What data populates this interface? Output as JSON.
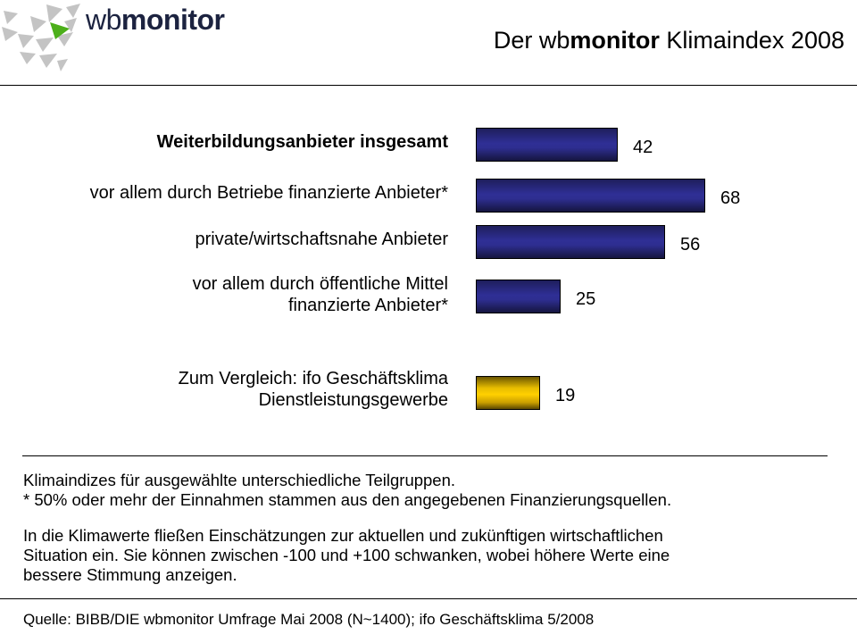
{
  "header": {
    "logo": {
      "text_light": "wb",
      "text_bold": "monitor"
    },
    "title": {
      "prefix": "Der wb",
      "bold": "monitor",
      "suffix": " Klimaindex 2008"
    }
  },
  "chart_data": {
    "type": "bar",
    "orientation": "horizontal",
    "title": "Der wbmonitor Klimaindex 2008",
    "categories": [
      [
        "Weiterbildungsanbieter  insgesamt"
      ],
      [
        "vor allem durch Betriebe finanzierte Anbieter*"
      ],
      [
        "private/wirtschaftsnahe Anbieter"
      ],
      [
        "vor allem durch öffentliche Mittel",
        "finanzierte Anbieter*"
      ],
      [
        "Zum Vergleich: ifo Geschäftsklima",
        "Dienstleistungsgewerbe"
      ]
    ],
    "values": [
      42,
      68,
      56,
      25,
      19
    ],
    "value_labels": [
      "42",
      "68",
      "56",
      "25",
      "19"
    ],
    "bar_colors": [
      "#2f2f95",
      "#2f2f95",
      "#2f2f95",
      "#2f2f95",
      "#ffd000"
    ],
    "xlim": [
      0,
      100
    ],
    "grid": false,
    "legend": "none"
  },
  "notes": {
    "line1": "Klimaindizes für ausgewählte unterschiedliche Teilgruppen.",
    "line2": "* 50% oder mehr der Einnahmen stammen aus den angegebenen Finanzierungsquellen.",
    "para": [
      "In die Klimawerte fließen Einschätzungen zur aktuellen und zukünftigen wirtschaftlichen",
      "Situation ein. Sie können zwischen -100 und +100 schwanken, wobei höhere Werte eine",
      "bessere Stimmung anzeigen."
    ]
  },
  "footer": {
    "source": "Quelle: BIBB/DIE wbmonitor Umfrage Mai 2008 (N~1400); ifo Geschäftsklima 5/2008"
  },
  "colors": {
    "bar_blue": "#2f2f95",
    "bar_gold": "#ffd000",
    "logo_green": "#4caf1a",
    "logo_grey": "#c4c4c4",
    "logo_text": "#1c2340"
  }
}
